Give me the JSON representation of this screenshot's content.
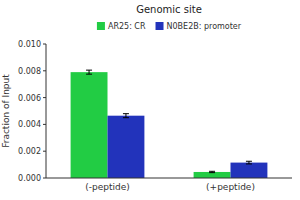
{
  "chart_data": {
    "type": "bar",
    "title": "Genomic site",
    "ylabel": "Fraction of Input",
    "categories": [
      "(-peptide)",
      "(+peptide)"
    ],
    "series": [
      {
        "name": "AR25: CR",
        "color": "#22cc44",
        "values": [
          0.0079,
          0.00045
        ],
        "errors": [
          0.00015,
          5e-05
        ]
      },
      {
        "name": "N0BE2B: promoter",
        "color": "#2233bb",
        "values": [
          0.00465,
          0.00115
        ],
        "errors": [
          0.00015,
          0.0001
        ]
      }
    ],
    "ylim": [
      0,
      0.01
    ],
    "yticks": [
      {
        "value": 0.0,
        "label": "0.000"
      },
      0.002,
      0.004,
      0.006,
      0.008,
      {
        "value": 0.01,
        "label": "0.010"
      }
    ],
    "grid": false,
    "legend": "top"
  }
}
